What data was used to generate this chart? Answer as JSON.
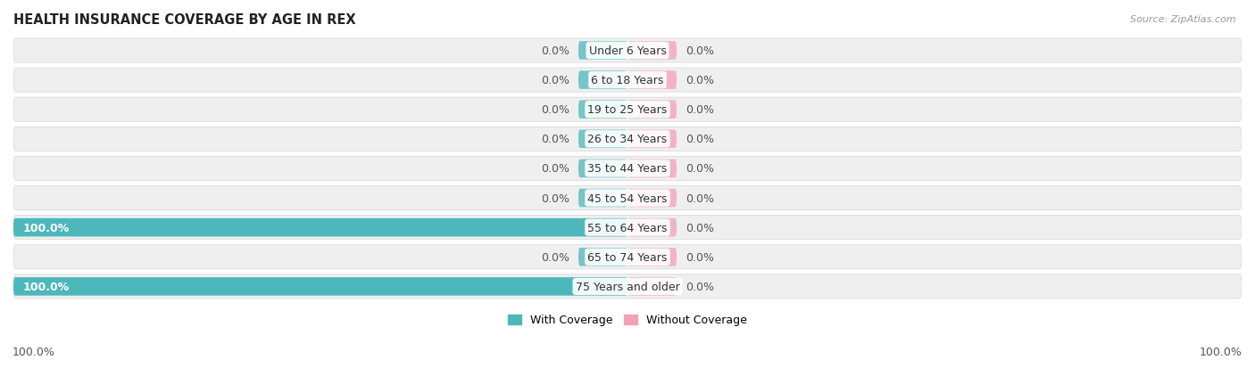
{
  "title": "HEALTH INSURANCE COVERAGE BY AGE IN REX",
  "source": "Source: ZipAtlas.com",
  "age_groups": [
    "Under 6 Years",
    "6 to 18 Years",
    "19 to 25 Years",
    "26 to 34 Years",
    "35 to 44 Years",
    "45 to 54 Years",
    "55 to 64 Years",
    "65 to 74 Years",
    "75 Years and older"
  ],
  "with_coverage": [
    0.0,
    0.0,
    0.0,
    0.0,
    0.0,
    0.0,
    100.0,
    0.0,
    100.0
  ],
  "without_coverage": [
    0.0,
    0.0,
    0.0,
    0.0,
    0.0,
    0.0,
    0.0,
    0.0,
    0.0
  ],
  "color_with": "#4db8bc",
  "color_without": "#f4a0b5",
  "color_row_bg": "#efefef",
  "color_row_border": "#e0e0e0",
  "axis_label_left": "100.0%",
  "axis_label_right": "100.0%",
  "legend_with": "With Coverage",
  "legend_without": "Without Coverage",
  "stub_size": 8.0,
  "label_fontsize": 9,
  "title_fontsize": 10.5,
  "source_fontsize": 8
}
